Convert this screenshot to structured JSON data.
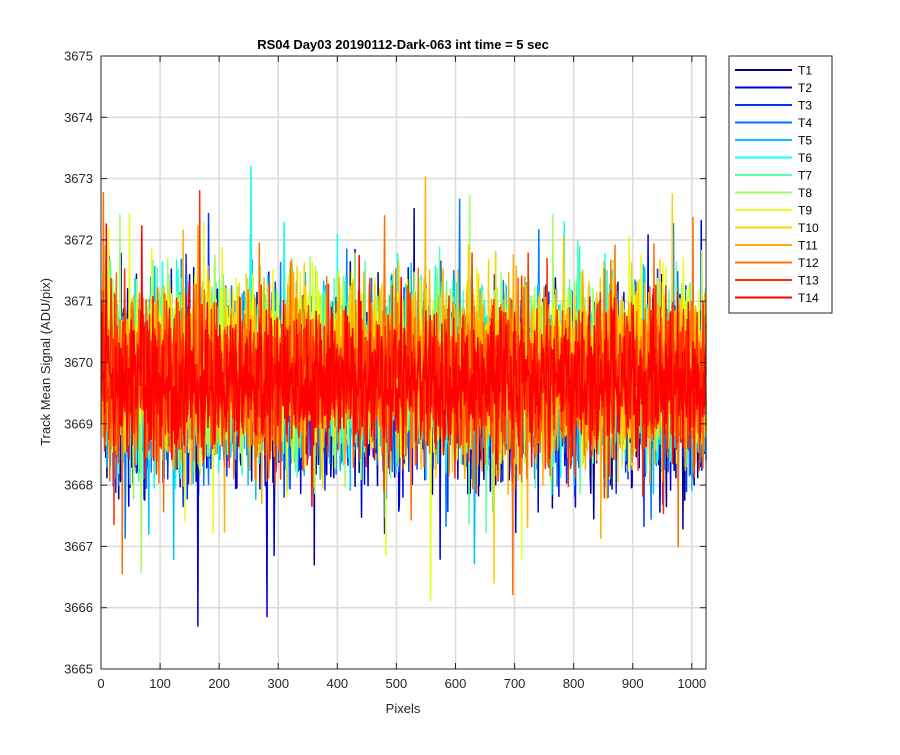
{
  "chart_data": {
    "type": "line",
    "title": "RS04 Day03 20190112-Dark-063 int time = 5 sec",
    "xlabel": "Pixels",
    "ylabel": "Track Mean Signal (ADU/pix)",
    "xlim": [
      0,
      1024
    ],
    "ylim": [
      3665,
      3675
    ],
    "grid": true,
    "legend_position": "outside-top-right",
    "x_ticks": [
      0,
      100,
      200,
      300,
      400,
      500,
      600,
      700,
      800,
      900,
      1000
    ],
    "y_ticks": [
      3665,
      3666,
      3667,
      3668,
      3669,
      3670,
      3671,
      3672,
      3673,
      3674,
      3675
    ],
    "x_tick_labels": [
      "0",
      "100",
      "200",
      "300",
      "400",
      "500",
      "600",
      "700",
      "800",
      "900",
      "1000"
    ],
    "y_tick_labels": [
      "3665",
      "3666",
      "3667",
      "3668",
      "3669",
      "3670",
      "3671",
      "3672",
      "3673",
      "3674",
      "3675"
    ],
    "series": [
      {
        "name": "T1",
        "color": "#00008f",
        "mean": 3669.55,
        "sd": 0.75
      },
      {
        "name": "T2",
        "color": "#0000d8",
        "mean": 3669.6,
        "sd": 0.75
      },
      {
        "name": "T3",
        "color": "#0030ff",
        "mean": 3669.6,
        "sd": 0.72
      },
      {
        "name": "T4",
        "color": "#0078ff",
        "mean": 3669.7,
        "sd": 0.72
      },
      {
        "name": "T5",
        "color": "#00c0ff",
        "mean": 3669.75,
        "sd": 0.72
      },
      {
        "name": "T6",
        "color": "#10ffef",
        "mean": 3669.8,
        "sd": 0.7
      },
      {
        "name": "T7",
        "color": "#58ffa7",
        "mean": 3669.85,
        "sd": 0.7
      },
      {
        "name": "T8",
        "color": "#a0ff5f",
        "mean": 3669.9,
        "sd": 0.7
      },
      {
        "name": "T9",
        "color": "#e8ff17",
        "mean": 3669.95,
        "sd": 0.7
      },
      {
        "name": "T10",
        "color": "#ffcf00",
        "mean": 3669.9,
        "sd": 0.7
      },
      {
        "name": "T11",
        "color": "#ffb000",
        "mean": 3669.8,
        "sd": 0.68
      },
      {
        "name": "T12",
        "color": "#ff7000",
        "mean": 3669.7,
        "sd": 0.68
      },
      {
        "name": "T13",
        "color": "#ff3000",
        "mean": 3669.7,
        "sd": 0.65
      },
      {
        "name": "T14",
        "color": "#ff0000",
        "mean": 3669.7,
        "sd": 0.55
      }
    ]
  }
}
